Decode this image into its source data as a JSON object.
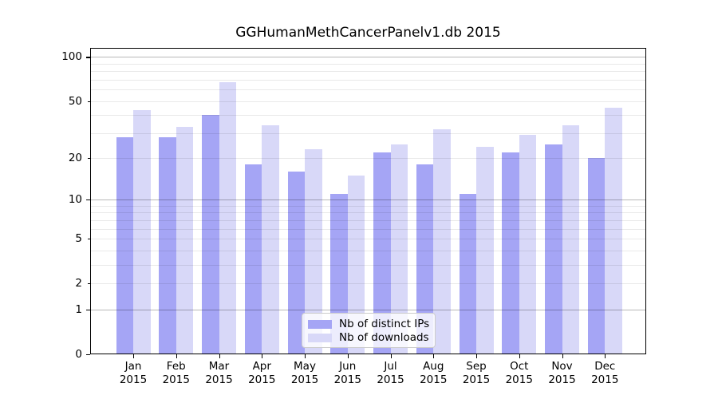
{
  "title": "GGHumanMethCancerPanelv1.db 2015",
  "chart_data": {
    "type": "bar",
    "title": "GGHumanMethCancerPanelv1.db 2015",
    "categories": [
      "Jan 2015",
      "Feb 2015",
      "Mar 2015",
      "Apr 2015",
      "May 2015",
      "Jun 2015",
      "Jul 2015",
      "Aug 2015",
      "Sep 2015",
      "Oct 2015",
      "Nov 2015",
      "Dec 2015"
    ],
    "series": [
      {
        "name": "Nb of distinct IPs",
        "color": "#a5a5f5",
        "values": [
          28,
          28,
          40,
          18,
          16,
          11,
          22,
          18,
          11,
          22,
          25,
          20
        ]
      },
      {
        "name": "Nb of downloads",
        "color": "#d8d8f8",
        "values": [
          43,
          33,
          67,
          34,
          23,
          15,
          25,
          32,
          24,
          29,
          34,
          45
        ]
      }
    ],
    "xlabel": "",
    "ylabel": "",
    "yscale": "log10(value+1), zero at baseline",
    "y_tick_labels": [
      0,
      1,
      2,
      5,
      10,
      20,
      50,
      100
    ],
    "y_minor_gridlines": [
      2,
      3,
      4,
      5,
      6,
      7,
      8,
      9,
      20,
      30,
      40,
      50,
      60,
      70,
      80,
      90
    ],
    "y_major_gridlines": [
      1,
      10,
      100
    ],
    "ylim": [
      0,
      115
    ],
    "grid": true,
    "legend_position": "lower-center"
  }
}
